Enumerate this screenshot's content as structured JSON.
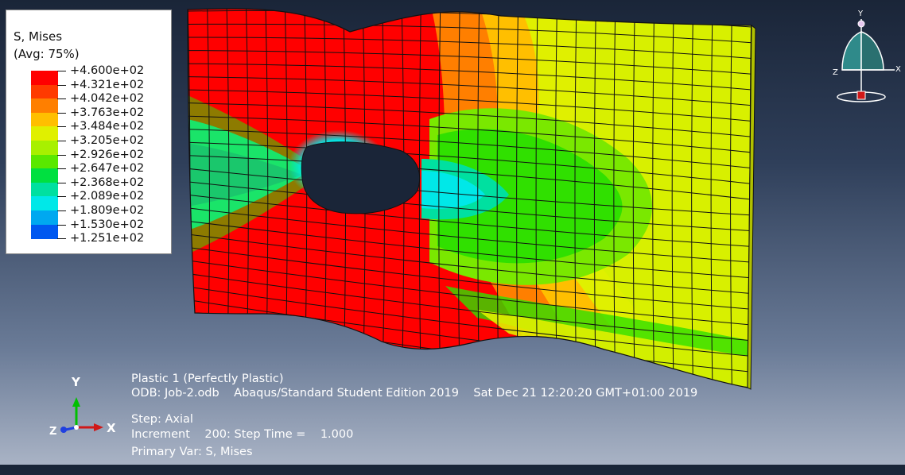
{
  "legend": {
    "variable": "S, Mises",
    "averaging": "(Avg: 75%)",
    "levels": [
      {
        "label": "+4.600e+02",
        "color": "#ff0000"
      },
      {
        "label": "+4.321e+02",
        "color": "#ff3a00"
      },
      {
        "label": "+4.042e+02",
        "color": "#ff7f00"
      },
      {
        "label": "+3.763e+02",
        "color": "#ffbf00"
      },
      {
        "label": "+3.484e+02",
        "color": "#e0f000"
      },
      {
        "label": "+3.205e+02",
        "color": "#a8f000"
      },
      {
        "label": "+2.926e+02",
        "color": "#5ae800"
      },
      {
        "label": "+2.647e+02",
        "color": "#00e040"
      },
      {
        "label": "+2.368e+02",
        "color": "#00e0a0"
      },
      {
        "label": "+2.089e+02",
        "color": "#00e8e8"
      },
      {
        "label": "+1.809e+02",
        "color": "#00a8f0"
      },
      {
        "label": "+1.530e+02",
        "color": "#0058f0"
      },
      {
        "label": "+1.251e+02",
        "color": "#0000f0"
      }
    ]
  },
  "triad": {
    "x": "X",
    "y": "Y",
    "z": "Z"
  },
  "orientation_triad": {
    "x": "X",
    "y": "Y",
    "z": "Z"
  },
  "info": {
    "line1": "Plastic 1 (Perfectly Plastic)",
    "line2": "ODB: Job-2.odb    Abaqus/Standard Student Edition 2019    Sat Dec 21 12:20:20 GMT+01:00 2019",
    "line3": "Step: Axial",
    "line4": "Increment    200: Step Time =    1.000",
    "line5": "Primary Var: S, Mises"
  }
}
